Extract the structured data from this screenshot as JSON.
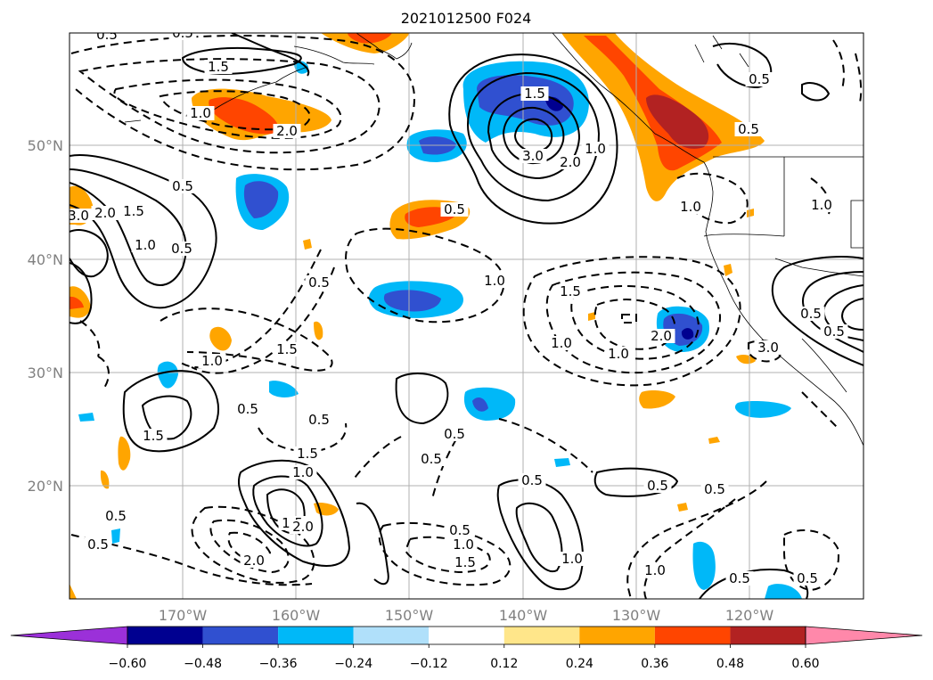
{
  "title": "2021012500 F024",
  "lat_labels": [
    "50°N",
    "40°N",
    "30°N",
    "20°N"
  ],
  "lon_labels": [
    "170°W",
    "160°W",
    "150°W",
    "140°W",
    "130°W",
    "120°W"
  ],
  "gridline_color": "#b0b0b0",
  "tick_label_color": "#808080",
  "colorbar": {
    "ticks": [
      "−0.60",
      "−0.48",
      "−0.36",
      "−0.24",
      "−0.12",
      "0.12",
      "0.24",
      "0.36",
      "0.48",
      "0.60"
    ],
    "colors": [
      "#9b30d9",
      "#000090",
      "#3050d0",
      "#00b8f8",
      "#b0e0fa",
      "#ffffff",
      "#ffe68a",
      "#ffa500",
      "#ff4500",
      "#b22222",
      "#ff88aa"
    ]
  },
  "contour_labels": [
    "0.5",
    "0.5",
    "1.5",
    "1.0",
    "2.0",
    "1.5",
    "3.0",
    "2.0",
    "1.0",
    "0.5",
    "0.5",
    "0.5",
    "1.0",
    "0.5",
    "3.0",
    "2.0",
    "1.5",
    "1.0",
    "1.5",
    "0.5",
    "1.0",
    "1.0",
    "1.0",
    "0.5",
    "1.0",
    "1.5",
    "1.0",
    "2.0",
    "3.0",
    "1.5",
    "1.5",
    "0.5",
    "0.5",
    "0.5",
    "0.5",
    "0.5",
    "0.5",
    "1.5",
    "0.5",
    "1.0",
    "0.5",
    "2.0",
    "0.5",
    "1.0",
    "1.5",
    "2.0",
    "1.0",
    "1.0",
    "0.5",
    "0.5",
    "0.5",
    "0.5",
    "0.5"
  ]
}
